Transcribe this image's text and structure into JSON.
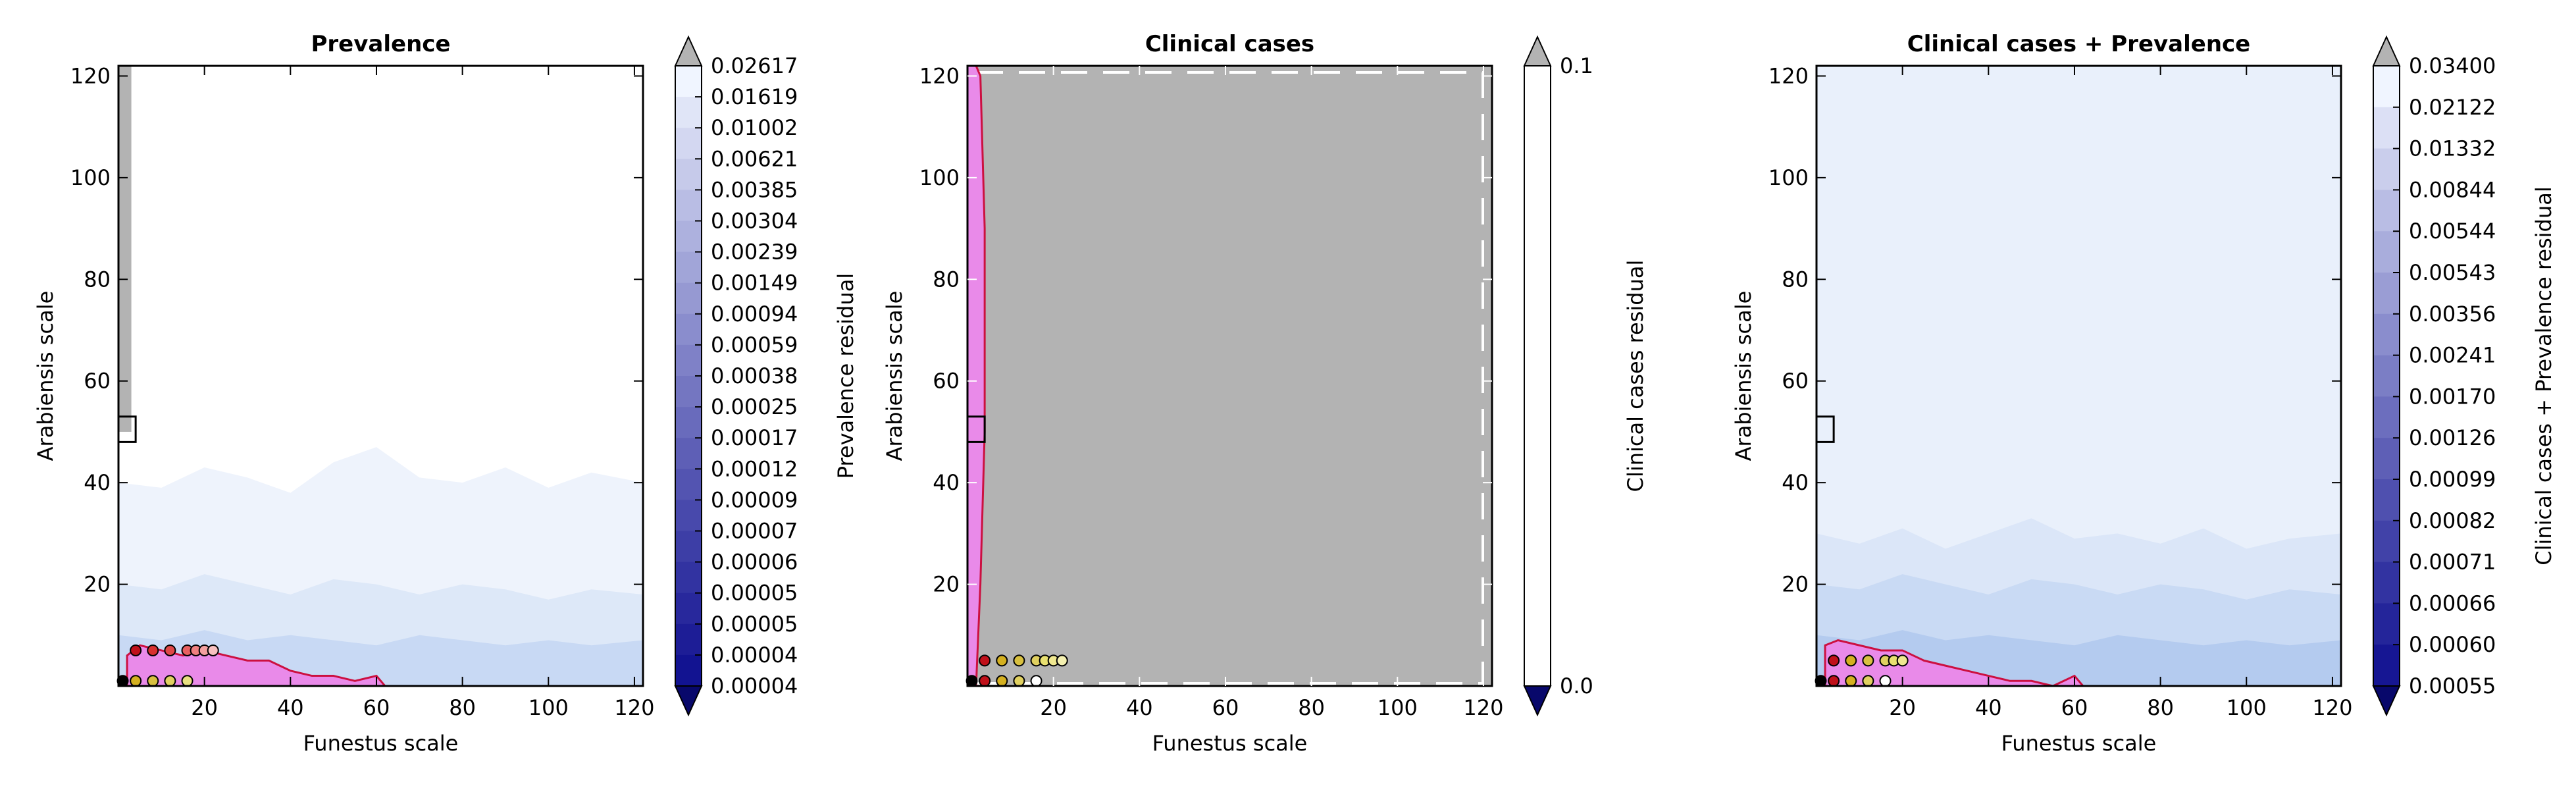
{
  "chart_data": [
    {
      "type": "heatmap",
      "title": "Prevalence",
      "xlabel": "Funestus scale",
      "ylabel": "Arabiensis scale",
      "xlim": [
        0,
        122
      ],
      "ylim": [
        0,
        122
      ],
      "xticks": [
        20,
        40,
        60,
        80,
        100,
        120
      ],
      "yticks": [
        20,
        40,
        60,
        80,
        100,
        120
      ],
      "grid": false,
      "colorbar": {
        "label": "Prevalence residual",
        "extend": "both",
        "levels": [
          "0.02617",
          "0.01619",
          "0.01002",
          "0.00621",
          "0.00385",
          "0.00304",
          "0.00239",
          "0.00149",
          "0.00094",
          "0.00059",
          "0.00038",
          "0.00025",
          "0.00017",
          "0.00012",
          "0.00009",
          "0.00007",
          "0.00006",
          "0.00005",
          "0.00005",
          "0.00004",
          "0.00004"
        ],
        "over_color": "#b3b3b3",
        "under_color": "#08086b"
      },
      "region_colors": {
        "background": "#ffffff",
        "band_light": "#eef3fc",
        "band_mid": "#dde8f8",
        "band_dark": "#c8d9f4",
        "over_region": "#b3b3b3",
        "best_region": "#e98ae9"
      },
      "regions": [
        {
          "level": "band_light",
          "x": [
            0,
            10,
            20,
            30,
            40,
            50,
            60,
            70,
            80,
            90,
            100,
            110,
            122
          ],
          "y": [
            40,
            39,
            43,
            41,
            38,
            44,
            47,
            41,
            40,
            43,
            39,
            42,
            40
          ]
        },
        {
          "level": "band_mid",
          "x": [
            0,
            10,
            20,
            30,
            40,
            50,
            60,
            70,
            80,
            90,
            100,
            110,
            122
          ],
          "y": [
            20,
            19,
            22,
            20,
            18,
            21,
            20,
            18,
            20,
            19,
            17,
            19,
            18
          ]
        },
        {
          "level": "band_dark",
          "x": [
            0,
            10,
            20,
            30,
            40,
            50,
            60,
            70,
            80,
            90,
            100,
            110,
            122
          ],
          "y": [
            10,
            9,
            11,
            9,
            10,
            9,
            8,
            10,
            9,
            8,
            9,
            8,
            9
          ]
        }
      ],
      "left_strip": {
        "x": [
          0,
          3
        ],
        "y": [
          0,
          122
        ]
      },
      "best_region": {
        "x": [
          2,
          5,
          10,
          15,
          20,
          25,
          30,
          35,
          40,
          45,
          50,
          55,
          60,
          62
        ],
        "y": [
          6,
          8,
          7,
          6,
          7,
          6,
          5,
          5,
          3,
          2,
          2,
          1,
          2,
          0
        ]
      },
      "highlight_box": {
        "x": [
          0,
          4
        ],
        "y": [
          48,
          53
        ]
      },
      "points": [
        {
          "x": 4,
          "y": 7,
          "color": "#c0101a"
        },
        {
          "x": 8,
          "y": 7,
          "color": "#d83030"
        },
        {
          "x": 12,
          "y": 7,
          "color": "#e04848"
        },
        {
          "x": 16,
          "y": 7,
          "color": "#e86060"
        },
        {
          "x": 18,
          "y": 7,
          "color": "#f08080"
        },
        {
          "x": 20,
          "y": 7,
          "color": "#f4a0a0"
        },
        {
          "x": 22,
          "y": 7,
          "color": "#f8c0c0"
        },
        {
          "x": 1,
          "y": 1,
          "color": "#000000"
        },
        {
          "x": 4,
          "y": 1,
          "color": "#d4b020"
        },
        {
          "x": 8,
          "y": 1,
          "color": "#d8c040"
        },
        {
          "x": 12,
          "y": 1,
          "color": "#e0d060"
        },
        {
          "x": 16,
          "y": 1,
          "color": "#e8e080"
        }
      ]
    },
    {
      "type": "heatmap",
      "title": "Clinical cases",
      "xlabel": "Funestus scale",
      "ylabel": "Arabiensis scale",
      "xlim": [
        0,
        122
      ],
      "ylim": [
        0,
        122
      ],
      "xticks": [
        20,
        40,
        60,
        80,
        100,
        120
      ],
      "yticks": [
        20,
        40,
        60,
        80,
        100,
        120
      ],
      "grid": false,
      "colorbar": {
        "label": "Clinical cases residual",
        "extend": "both",
        "levels": [
          "0.1",
          "0.0"
        ],
        "over_color": "#b3b3b3",
        "under_color": "#08086b"
      },
      "region_colors": {
        "background": "#b3b3b3",
        "best_region": "#e98ae9",
        "dashed_border": "#ffffff"
      },
      "left_strip": {
        "x": [
          0,
          4
        ],
        "y": [
          0,
          122
        ]
      },
      "best_region": {
        "x": [
          2,
          3,
          4,
          4,
          3,
          2
        ],
        "y": [
          0,
          20,
          50,
          90,
          120,
          122
        ]
      },
      "highlight_box": {
        "x": [
          0,
          4
        ],
        "y": [
          48,
          53
        ]
      },
      "points": [
        {
          "x": 1,
          "y": 1,
          "color": "#000000"
        },
        {
          "x": 4,
          "y": 1,
          "color": "#c0101a"
        },
        {
          "x": 4,
          "y": 5,
          "color": "#c0101a"
        },
        {
          "x": 8,
          "y": 5,
          "color": "#d4b020"
        },
        {
          "x": 12,
          "y": 5,
          "color": "#d8c040"
        },
        {
          "x": 16,
          "y": 5,
          "color": "#e0d060"
        },
        {
          "x": 18,
          "y": 5,
          "color": "#e8e070"
        },
        {
          "x": 20,
          "y": 5,
          "color": "#f0e890"
        },
        {
          "x": 22,
          "y": 5,
          "color": "#f4f0b0"
        },
        {
          "x": 8,
          "y": 1,
          "color": "#d4b020"
        },
        {
          "x": 12,
          "y": 1,
          "color": "#e0d060"
        },
        {
          "x": 16,
          "y": 1,
          "color": "#ffffff"
        }
      ]
    },
    {
      "type": "heatmap",
      "title": "Clinical cases + Prevalence",
      "xlabel": "Funestus scale",
      "ylabel": "Arabiensis scale",
      "xlim": [
        0,
        122
      ],
      "ylim": [
        0,
        122
      ],
      "xticks": [
        20,
        40,
        60,
        80,
        100,
        120
      ],
      "yticks": [
        20,
        40,
        60,
        80,
        100,
        120
      ],
      "grid": false,
      "colorbar": {
        "label": "Clinical cases + Prevalence residual",
        "extend": "both",
        "levels": [
          "0.03400",
          "0.02122",
          "0.01332",
          "0.00844",
          "0.00544",
          "0.00543",
          "0.00356",
          "0.00241",
          "0.00170",
          "0.00126",
          "0.00099",
          "0.00082",
          "0.00071",
          "0.00066",
          "0.00060",
          "0.00055"
        ],
        "over_color": "#b3b3b3",
        "under_color": "#08086b"
      },
      "region_colors": {
        "background": "#e9f0fb",
        "band_light": "#dbe6f8",
        "band_mid": "#c9daf4",
        "band_dark": "#b4cbef",
        "best_region": "#e98ae9"
      },
      "regions": [
        {
          "level": "band_light",
          "x": [
            0,
            10,
            20,
            30,
            40,
            50,
            60,
            70,
            80,
            90,
            100,
            110,
            122
          ],
          "y": [
            30,
            28,
            31,
            27,
            30,
            33,
            29,
            30,
            28,
            31,
            27,
            29,
            30
          ]
        },
        {
          "level": "band_mid",
          "x": [
            0,
            10,
            20,
            30,
            40,
            50,
            60,
            70,
            80,
            90,
            100,
            110,
            122
          ],
          "y": [
            20,
            19,
            22,
            20,
            18,
            21,
            20,
            18,
            20,
            19,
            17,
            19,
            18
          ]
        },
        {
          "level": "band_dark",
          "x": [
            0,
            10,
            20,
            30,
            40,
            50,
            60,
            70,
            80,
            90,
            100,
            110,
            122
          ],
          "y": [
            10,
            9,
            11,
            9,
            10,
            9,
            8,
            10,
            9,
            8,
            9,
            8,
            9
          ]
        }
      ],
      "best_region": {
        "x": [
          2,
          5,
          10,
          15,
          20,
          25,
          30,
          35,
          40,
          45,
          50,
          55,
          60,
          62
        ],
        "y": [
          8,
          9,
          8,
          7,
          7,
          5,
          4,
          3,
          2,
          1,
          1,
          0,
          2,
          0
        ]
      },
      "highlight_box": {
        "x": [
          0,
          4
        ],
        "y": [
          48,
          53
        ]
      },
      "points": [
        {
          "x": 4,
          "y": 5,
          "color": "#c0101a"
        },
        {
          "x": 8,
          "y": 5,
          "color": "#d4b020"
        },
        {
          "x": 12,
          "y": 5,
          "color": "#d8c040"
        },
        {
          "x": 16,
          "y": 5,
          "color": "#e0d060"
        },
        {
          "x": 18,
          "y": 5,
          "color": "#e8e070"
        },
        {
          "x": 20,
          "y": 5,
          "color": "#f0e890"
        },
        {
          "x": 1,
          "y": 1,
          "color": "#000000"
        },
        {
          "x": 4,
          "y": 1,
          "color": "#c0101a"
        },
        {
          "x": 8,
          "y": 1,
          "color": "#d4b020"
        },
        {
          "x": 12,
          "y": 1,
          "color": "#e0d060"
        },
        {
          "x": 16,
          "y": 1,
          "color": "#ffffff"
        }
      ]
    }
  ]
}
